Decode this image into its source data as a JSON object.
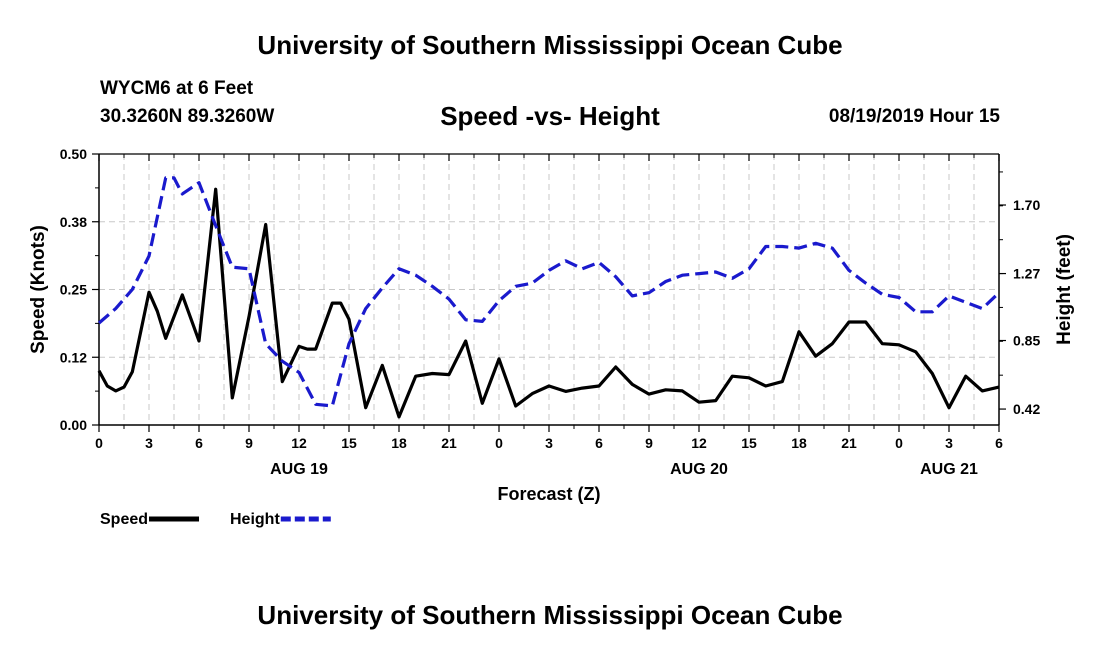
{
  "header": {
    "title": "University of Southern Mississippi Ocean Cube",
    "station": "WYCM6 at 6 Feet",
    "coords": "30.3260N 89.3260W",
    "subtitle": "Speed -vs- Height",
    "datetime": "08/19/2019 Hour 15"
  },
  "footer": {
    "title": "University of Southern Mississippi Ocean Cube"
  },
  "chart_data": {
    "type": "line",
    "xlabel": "Forecast (Z)",
    "ylabel": "Speed (Knots)",
    "y2label": "Height (feet)",
    "xlim": [
      0,
      54
    ],
    "ylim": [
      0,
      0.5
    ],
    "y2lim": [
      0.32,
      2.02
    ],
    "x_ticks": [
      0,
      3,
      6,
      9,
      12,
      15,
      18,
      21,
      24,
      27,
      30,
      33,
      36,
      39,
      42,
      45,
      48,
      51,
      54
    ],
    "x_tick_labels": [
      "0",
      "3",
      "6",
      "9",
      "12",
      "15",
      "18",
      "21",
      "0",
      "3",
      "6",
      "9",
      "12",
      "15",
      "18",
      "21",
      "0",
      "3",
      "6"
    ],
    "day_labels": [
      {
        "x": 12,
        "label": "AUG 19"
      },
      {
        "x": 36,
        "label": "AUG 20"
      },
      {
        "x": 51,
        "label": "AUG 21"
      }
    ],
    "y_ticks": [
      0,
      0.125,
      0.25,
      0.375,
      0.5
    ],
    "y_tick_labels": [
      "0.00",
      "0.12",
      "0.25",
      "0.38",
      "0.50"
    ],
    "y2_ticks": [
      0.42,
      0.85,
      1.27,
      1.7
    ],
    "y2_tick_labels": [
      "0.42",
      "0.85",
      "1.27",
      "1.70"
    ],
    "grid": true,
    "legend": [
      "Speed",
      "Height"
    ],
    "series": [
      {
        "name": "Speed",
        "axis": "left",
        "color": "#000000",
        "style": "solid",
        "x": [
          0,
          0.5,
          1,
          1.5,
          2,
          3,
          3.5,
          4,
          5,
          6,
          7,
          8,
          9,
          10,
          11,
          12,
          12.5,
          13,
          14,
          14.5,
          15,
          16,
          17,
          18,
          19,
          20,
          21,
          22,
          23,
          24,
          25,
          26,
          27,
          28,
          29,
          30,
          31,
          32,
          33,
          34,
          35,
          36,
          37,
          38,
          39,
          40,
          41,
          42,
          43,
          44,
          45,
          46,
          47,
          48,
          49,
          50,
          51,
          52,
          53,
          54
        ],
        "values": [
          0.1,
          0.072,
          0.063,
          0.07,
          0.098,
          0.245,
          0.21,
          0.16,
          0.24,
          0.155,
          0.435,
          0.05,
          0.2,
          0.37,
          0.08,
          0.145,
          0.14,
          0.14,
          0.225,
          0.225,
          0.195,
          0.032,
          0.11,
          0.015,
          0.09,
          0.095,
          0.093,
          0.155,
          0.04,
          0.122,
          0.035,
          0.058,
          0.072,
          0.062,
          0.068,
          0.072,
          0.107,
          0.075,
          0.057,
          0.065,
          0.063,
          0.042,
          0.045,
          0.09,
          0.087,
          0.072,
          0.08,
          0.172,
          0.127,
          0.15,
          0.19,
          0.19,
          0.15,
          0.148,
          0.135,
          0.095,
          0.032,
          0.09,
          0.063,
          0.07
        ]
      },
      {
        "name": "Height",
        "axis": "right",
        "color": "#1a1acd",
        "style": "dashed",
        "x": [
          0,
          1,
          2,
          3,
          4,
          4.5,
          5,
          6,
          7,
          8,
          9,
          10,
          11,
          12,
          13,
          14,
          15,
          16,
          17,
          18,
          19,
          20,
          21,
          22,
          23,
          24,
          25,
          26,
          27,
          28,
          29,
          30,
          31,
          32,
          33,
          34,
          35,
          36,
          37,
          38,
          39,
          40,
          41,
          42,
          43,
          44,
          45,
          46,
          47,
          48,
          49,
          50,
          51,
          52,
          53,
          54
        ],
        "values": [
          0.96,
          1.05,
          1.17,
          1.38,
          1.87,
          1.87,
          1.77,
          1.84,
          1.57,
          1.31,
          1.3,
          0.83,
          0.72,
          0.65,
          0.45,
          0.44,
          0.83,
          1.05,
          1.18,
          1.3,
          1.26,
          1.19,
          1.11,
          0.98,
          0.97,
          1.1,
          1.19,
          1.21,
          1.29,
          1.35,
          1.3,
          1.34,
          1.25,
          1.13,
          1.15,
          1.22,
          1.26,
          1.27,
          1.28,
          1.24,
          1.3,
          1.44,
          1.44,
          1.43,
          1.46,
          1.43,
          1.29,
          1.21,
          1.14,
          1.12,
          1.03,
          1.03,
          1.13,
          1.09,
          1.05,
          1.15
        ]
      }
    ]
  }
}
